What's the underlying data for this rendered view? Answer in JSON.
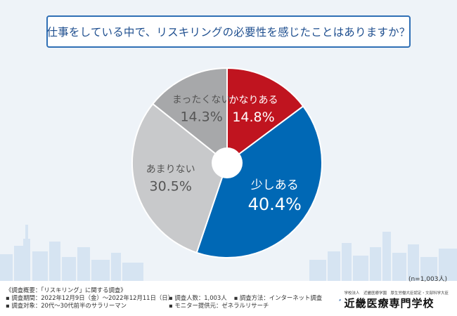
{
  "title": "仕事をしている中で、リスキリングの必要性を感じたことはありますか？",
  "respondents": "(n=1,003人)",
  "chart_data": {
    "type": "pie",
    "labels": [
      "かなりある",
      "少しある",
      "あまりない",
      "まったくない"
    ],
    "values": [
      14.8,
      40.4,
      30.5,
      14.3
    ],
    "value_labels": [
      "14.8%",
      "40.4%",
      "30.5%",
      "14.3%"
    ],
    "colors": [
      "#c0141f",
      "#0068b5",
      "#c8c9cb",
      "#a7a8aa"
    ],
    "donut_hole": true
  },
  "footer": {
    "heading": "《調査概要：「リスキリング」に関する調査》",
    "period": "▪ 調査期間：2022年12月9日（金）〜2022年12月11日（日）",
    "count": "▪ 調査人数：1,003人",
    "method": "▪ 調査方法：インターネット調査",
    "target": "▪ 調査対象：20代〜30代前半のサラリーマン",
    "provider": "▪ モニター提供元：ゼネラルリサーチ"
  },
  "logo": {
    "sub": "学校法人　近畿医療学園　厚生労働大臣認定・文部科学大臣",
    "main": "近畿医療専門学校"
  }
}
